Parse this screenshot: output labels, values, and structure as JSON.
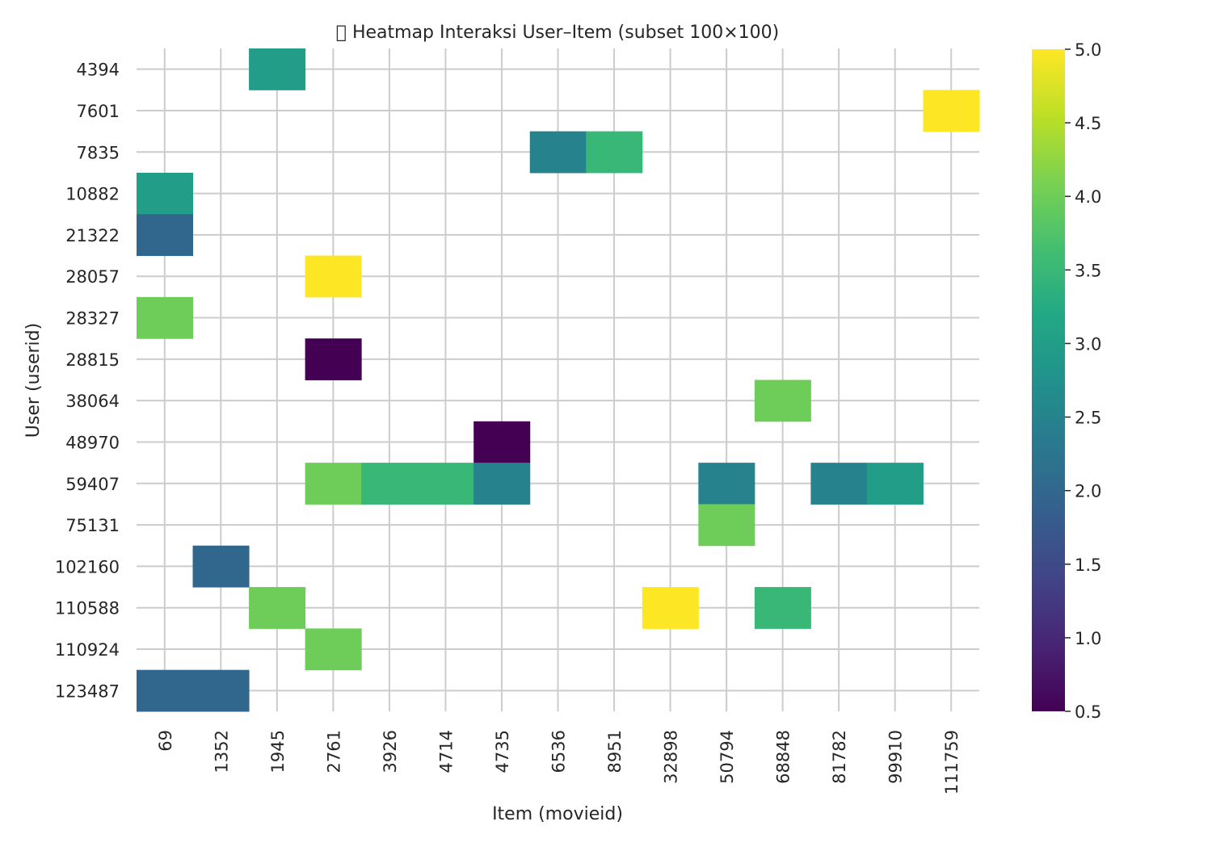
{
  "chart_data": {
    "type": "heatmap",
    "title": "􏰀 Heatmap Interaksi User–Item (subset 100×100)",
    "xlabel": "Item (movieid)",
    "ylabel": "User (userid)",
    "x_categories": [
      "69",
      "1352",
      "1945",
      "2761",
      "3926",
      "4714",
      "4735",
      "6536",
      "8951",
      "32898",
      "50794",
      "68848",
      "81782",
      "99910",
      "111759"
    ],
    "y_categories": [
      "4394",
      "7601",
      "7835",
      "10882",
      "21322",
      "28057",
      "28327",
      "28815",
      "38064",
      "48970",
      "59407",
      "75131",
      "102160",
      "110588",
      "110924",
      "123487"
    ],
    "cells": [
      {
        "user": "4394",
        "item": "1945",
        "value": 3.0
      },
      {
        "user": "7601",
        "item": "111759",
        "value": 5.0
      },
      {
        "user": "7835",
        "item": "6536",
        "value": 2.5
      },
      {
        "user": "7835",
        "item": "8951",
        "value": 3.5
      },
      {
        "user": "10882",
        "item": "69",
        "value": 3.0
      },
      {
        "user": "21322",
        "item": "69",
        "value": 2.0
      },
      {
        "user": "28057",
        "item": "2761",
        "value": 5.0
      },
      {
        "user": "28327",
        "item": "69",
        "value": 4.0
      },
      {
        "user": "28815",
        "item": "2761",
        "value": 0.5
      },
      {
        "user": "38064",
        "item": "68848",
        "value": 4.0
      },
      {
        "user": "48970",
        "item": "4735",
        "value": 0.5
      },
      {
        "user": "59407",
        "item": "2761",
        "value": 4.0
      },
      {
        "user": "59407",
        "item": "3926",
        "value": 3.5
      },
      {
        "user": "59407",
        "item": "4714",
        "value": 3.5
      },
      {
        "user": "59407",
        "item": "4735",
        "value": 2.5
      },
      {
        "user": "59407",
        "item": "50794",
        "value": 2.5
      },
      {
        "user": "59407",
        "item": "81782",
        "value": 2.5
      },
      {
        "user": "59407",
        "item": "99910",
        "value": 3.0
      },
      {
        "user": "75131",
        "item": "50794",
        "value": 4.0
      },
      {
        "user": "102160",
        "item": "1352",
        "value": 2.0
      },
      {
        "user": "110588",
        "item": "1945",
        "value": 4.0
      },
      {
        "user": "110588",
        "item": "32898",
        "value": 5.0
      },
      {
        "user": "110588",
        "item": "68848",
        "value": 3.5
      },
      {
        "user": "110924",
        "item": "2761",
        "value": 4.0
      },
      {
        "user": "123487",
        "item": "69",
        "value": 2.0
      },
      {
        "user": "123487",
        "item": "1352",
        "value": 2.0
      }
    ],
    "colorbar": {
      "colormap": "viridis",
      "vmin": 0.5,
      "vmax": 5.0,
      "ticks": [
        "0.5",
        "1.0",
        "1.5",
        "2.0",
        "2.5",
        "3.0",
        "3.5",
        "4.0",
        "4.5",
        "5.0"
      ]
    },
    "grid": true,
    "colors": {
      "grid": "#cccccc",
      "text": "#262626"
    }
  }
}
